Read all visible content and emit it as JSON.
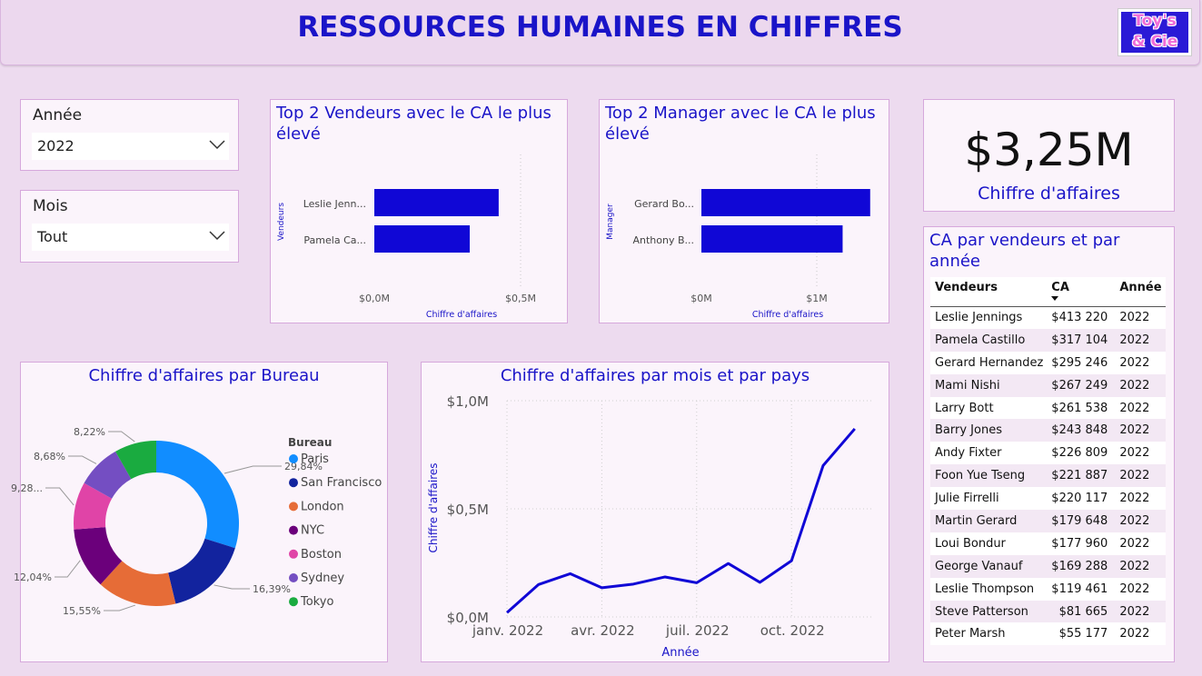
{
  "header": {
    "title": "RESSOURCES HUMAINES EN CHIFFRES",
    "logo_line1": "Toy's",
    "logo_line2": "& Cie"
  },
  "slicers": {
    "annee": {
      "label": "Année",
      "value": "2022"
    },
    "mois": {
      "label": "Mois",
      "value": "Tout"
    }
  },
  "top_vendeurs": {
    "title": "Top 2 Vendeurs avec le CA le plus élevé",
    "ylabel": "Vendeurs",
    "xlabel": "Chiffre d'affaires",
    "ticks": [
      "$0,0M",
      "$0,5M"
    ],
    "bars": [
      {
        "label": "Leslie Jenn...",
        "value": 413220
      },
      {
        "label": "Pamela Ca...",
        "value": 317104
      }
    ]
  },
  "top_managers": {
    "title": "Top 2 Manager avec le CA le plus élevé",
    "ylabel": "Manager",
    "xlabel": "Chiffre d'affaires",
    "ticks": [
      "$0M",
      "$1M"
    ],
    "bars": [
      {
        "label": "Gerard Bo...",
        "value": 1470000
      },
      {
        "label": "Anthony B...",
        "value": 1230000
      }
    ]
  },
  "kpi": {
    "value": "$3,25M",
    "label": "Chiffre d'affaires"
  },
  "ca_table": {
    "title": "CA par vendeurs et par année",
    "columns": [
      "Vendeurs",
      "CA",
      "Année"
    ],
    "rows": [
      [
        "Leslie Jennings",
        "$413 220",
        "2022"
      ],
      [
        "Pamela Castillo",
        "$317 104",
        "2022"
      ],
      [
        "Gerard Hernandez",
        "$295 246",
        "2022"
      ],
      [
        "Mami Nishi",
        "$267 249",
        "2022"
      ],
      [
        "Larry Bott",
        "$261 538",
        "2022"
      ],
      [
        "Barry Jones",
        "$243 848",
        "2022"
      ],
      [
        "Andy Fixter",
        "$226 809",
        "2022"
      ],
      [
        "Foon Yue Tseng",
        "$221 887",
        "2022"
      ],
      [
        "Julie Firrelli",
        "$220 117",
        "2022"
      ],
      [
        "Martin Gerard",
        "$179 648",
        "2022"
      ],
      [
        "Loui Bondur",
        "$177 960",
        "2022"
      ],
      [
        "George Vanauf",
        "$169 288",
        "2022"
      ],
      [
        "Leslie Thompson",
        "$119 461",
        "2022"
      ],
      [
        "Steve Patterson",
        "$81 665",
        "2022"
      ],
      [
        "Peter Marsh",
        "$55 177",
        "2022"
      ]
    ]
  },
  "chart_data": [
    {
      "type": "bar",
      "orientation": "horizontal",
      "title": "Top 2 Vendeurs avec le CA le plus élevé",
      "categories": [
        "Leslie Jenn...",
        "Pamela Ca..."
      ],
      "values": [
        413220,
        317104
      ],
      "xlabel": "Chiffre d'affaires",
      "ylabel": "Vendeurs",
      "xlim": [
        0,
        640000
      ],
      "color": "#1007d6"
    },
    {
      "type": "bar",
      "orientation": "horizontal",
      "title": "Top 2 Manager avec le CA le plus élevé",
      "categories": [
        "Gerard Bo...",
        "Anthony B..."
      ],
      "values": [
        1470000,
        1230000
      ],
      "xlabel": "Chiffre d'affaires",
      "ylabel": "Manager",
      "xlim": [
        0,
        1630000
      ],
      "color": "#1007d6"
    },
    {
      "type": "pie",
      "donut": true,
      "title": "Chiffre d'affaires par Bureau",
      "legend_title": "Bureau",
      "legend_position": "right",
      "categories": [
        "Paris",
        "San Francisco",
        "London",
        "NYC",
        "Boston",
        "Sydney",
        "Tokyo"
      ],
      "values": [
        29.84,
        16.39,
        15.55,
        12.04,
        9.28,
        8.68,
        8.22
      ],
      "labels": [
        "29,84%",
        "16,39%",
        "15,55%",
        "12,04%",
        "9,28...",
        "8,68%",
        "8,22%"
      ],
      "colors": [
        "#118dff",
        "#12239e",
        "#e66c37",
        "#6b007b",
        "#e044a7",
        "#744ec2",
        "#1aab40"
      ]
    },
    {
      "type": "line",
      "title": "Chiffre d'affaires par mois et par pays",
      "xlabel": "Année",
      "ylabel": "Chiffre d'affaires",
      "x": [
        "2022-01",
        "2022-02",
        "2022-03",
        "2022-04",
        "2022-05",
        "2022-06",
        "2022-07",
        "2022-08",
        "2022-09",
        "2022-10",
        "2022-11",
        "2022-12"
      ],
      "values": [
        20000,
        150000,
        200000,
        135000,
        152000,
        185000,
        158000,
        247000,
        160000,
        260000,
        700000,
        870000
      ],
      "xticks": [
        "janv. 2022",
        "avr. 2022",
        "juil. 2022",
        "oct. 2022"
      ],
      "yticks": [
        "$0,0M",
        "$0,5M",
        "$1,0M"
      ],
      "ylim": [
        0,
        1000000
      ],
      "color": "#1007d6",
      "grid": true
    }
  ]
}
